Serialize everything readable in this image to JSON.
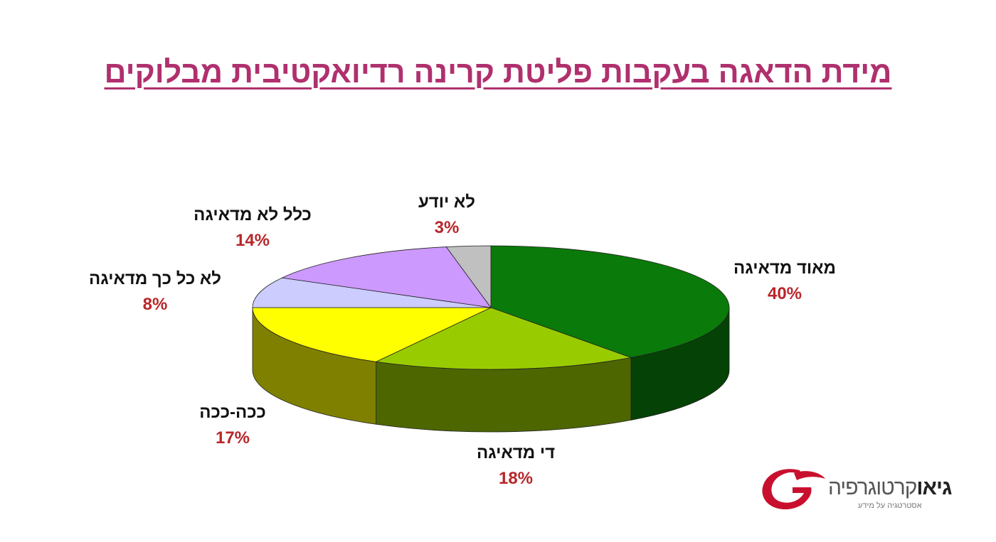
{
  "title": "מידת הדאגה בעקבות פליטת קרינה רדיואקטיבית מבלוקים",
  "chart_data": {
    "type": "pie",
    "title": "מידת הדאגה בעקבות פליטת קרינה רדיואקטיבית מבלוקים",
    "slices": [
      {
        "label": "מאוד מדאיגה",
        "value": 40,
        "value_label": "40%",
        "color": "#0a7a0a",
        "side_color": "#054205"
      },
      {
        "label": "די מדאיגה",
        "value": 18,
        "value_label": "18%",
        "color": "#99cc00",
        "side_color": "#4d6600"
      },
      {
        "label": "ככה-ככה",
        "value": 17,
        "value_label": "17%",
        "color": "#ffff00",
        "side_color": "#808000"
      },
      {
        "label": "לא כל כך מדאיגה",
        "value": 8,
        "value_label": "8%",
        "color": "#ccccff",
        "side_color": "#666680"
      },
      {
        "label": "כלל לא מדאיגה",
        "value": 14,
        "value_label": "14%",
        "color": "#cc99ff",
        "side_color": "#664c80"
      },
      {
        "label": "לא יודע",
        "value": 3,
        "value_label": "3%",
        "color": "#c0c0c0",
        "side_color": "#606060"
      }
    ]
  },
  "logo": {
    "brand_bold": "גיאו",
    "brand_rest": "קרטוגרפיה",
    "tagline": "אסטרטגיה על מידע"
  }
}
